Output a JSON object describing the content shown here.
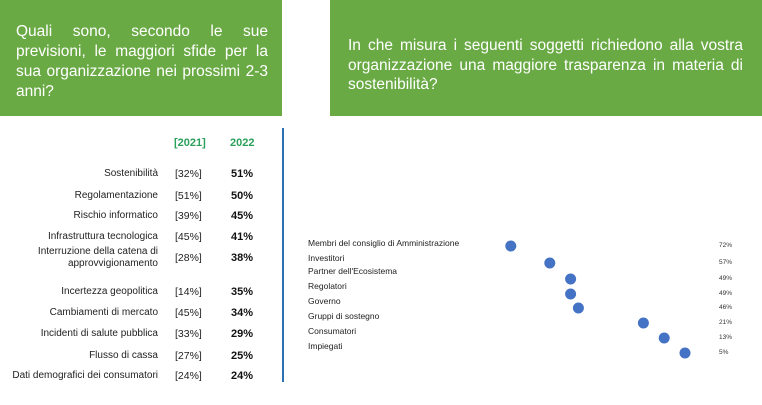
{
  "left_panel": {
    "question": "Quali sono, secondo le sue previsioni, le maggiori sfide per la sua organizzazione nei prossimi 2-3 anni?"
  },
  "right_panel": {
    "question": "In che misura i seguenti soggetti richiedono alla vostra organizzazione una maggiore trasparenza in materia di sostenibilità?"
  },
  "chart_data": [
    {
      "type": "table",
      "columns": [
        "",
        "[2021]",
        "2022"
      ],
      "rows": [
        {
          "label": "Sostenibilità",
          "prev": "[32%]",
          "curr": "51%"
        },
        {
          "label": "Regolamentazione",
          "prev": "[51%]",
          "curr": "50%"
        },
        {
          "label": "Rischio informatico",
          "prev": "[39%]",
          "curr": "45%"
        },
        {
          "label": "Infrastruttura tecnologica",
          "prev": "[45%]",
          "curr": "41%"
        },
        {
          "label": "Interruzione della catena di approvvigionamento",
          "label_lines": [
            "Interruzione della catena di",
            "approvvigionamento"
          ],
          "prev": "[28%]",
          "curr": "38%"
        },
        {
          "label": "Incertezza geopolitica",
          "prev": "[14%]",
          "curr": "35%"
        },
        {
          "label": "Cambiamenti di mercato",
          "prev": "[45%]",
          "curr": "34%"
        },
        {
          "label": "Incidenti di salute pubblica",
          "prev": "[33%]",
          "curr": "29%"
        },
        {
          "label": "Flusso di cassa",
          "prev": "[27%]",
          "curr": "25%"
        },
        {
          "label": "Dati demografici dei consumatori",
          "prev": "[24%]",
          "curr": "24%"
        }
      ]
    },
    {
      "type": "scatter",
      "categories": [
        "Membri del consiglio di Amministrazione",
        "Investitori",
        "Partner dell'Ecosistema",
        "Regolatori",
        "Governo",
        "Gruppi di sostegno",
        "Consumatori",
        "Impiegati"
      ],
      "values": [
        72,
        57,
        49,
        49,
        46,
        21,
        13,
        5
      ],
      "value_labels": [
        "72%",
        "57%",
        "49%",
        "49%",
        "46%",
        "21%",
        "13%",
        "5%"
      ],
      "x_direction": "reversed",
      "xlim": [
        0,
        80
      ],
      "grid": false,
      "marker_color": "#4472c4"
    }
  ]
}
